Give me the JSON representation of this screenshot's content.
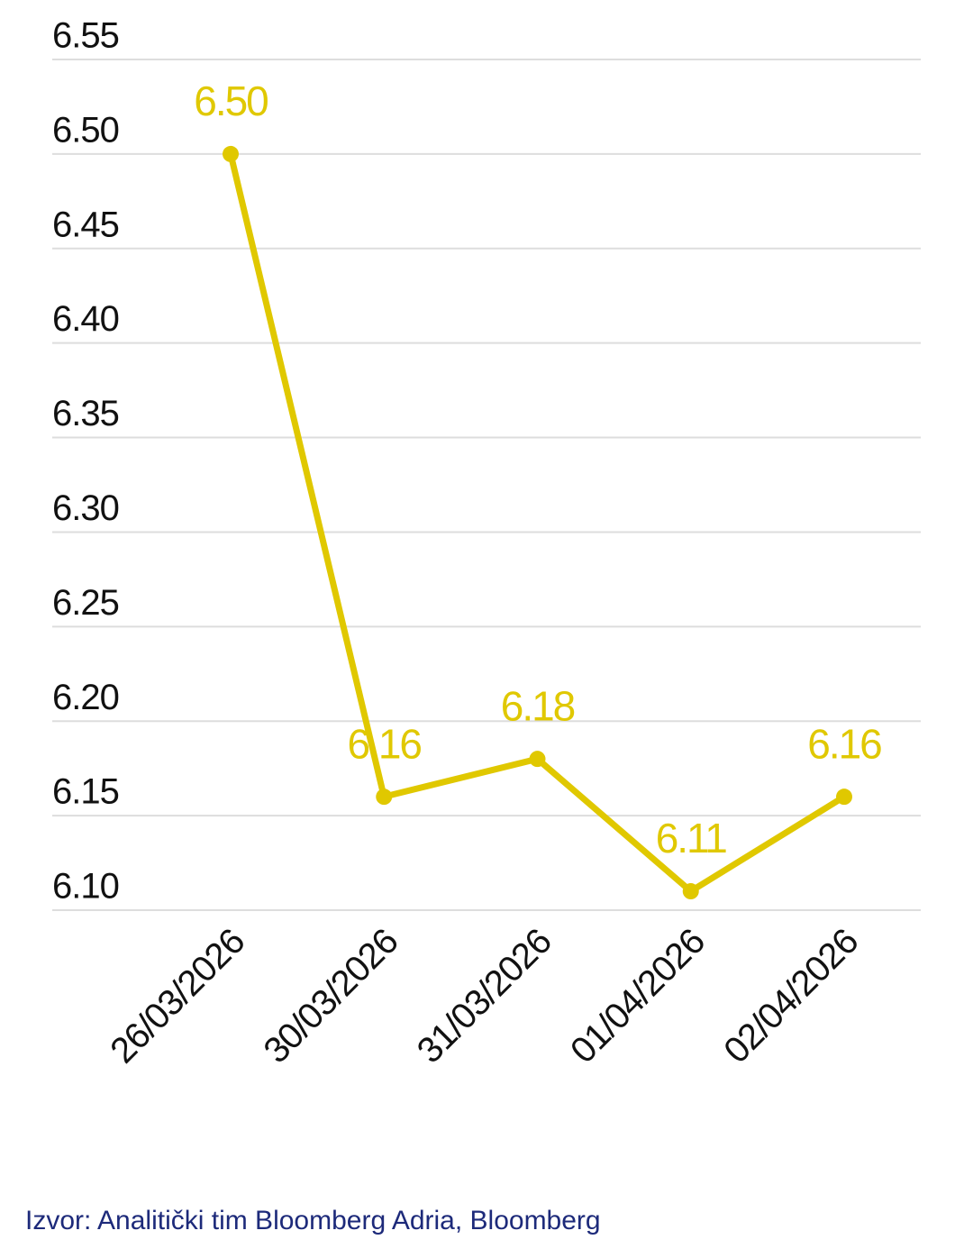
{
  "chart_data": {
    "type": "line",
    "categories": [
      "26/03/2026",
      "30/03/2026",
      "31/03/2026",
      "01/04/2026",
      "02/04/2026"
    ],
    "series": [
      {
        "name": "Value",
        "color": "#e0c800",
        "values": [
          6.5,
          6.16,
          6.18,
          6.11,
          6.16
        ],
        "value_labels": [
          "6.50",
          "6.16",
          "6.18",
          "6.11",
          "6.16"
        ]
      }
    ],
    "ylim": [
      6.1,
      6.55
    ],
    "yticks": [
      {
        "value": 6.1,
        "label": "6.10"
      },
      6.15,
      {
        "value": 6.2,
        "label": "6.20"
      },
      6.25,
      {
        "value": 6.3,
        "label": "6.30"
      },
      6.35,
      {
        "value": 6.4,
        "label": "6.40"
      },
      6.45,
      {
        "value": 6.5,
        "label": "6.50"
      },
      6.55
    ],
    "grid": true,
    "source": "Izvor: Analitički tim Bloomberg Adria, Bloomberg"
  }
}
